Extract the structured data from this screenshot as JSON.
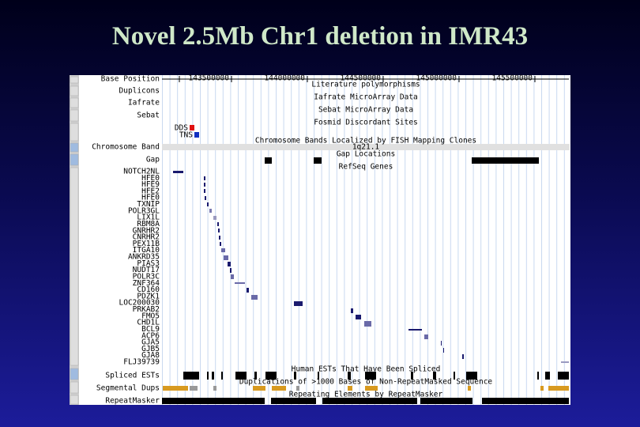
{
  "title": "Novel 2.5Mb Chr1 deletion in IMR43",
  "browser": {
    "base_position_label": "Base Position",
    "positions": [
      143500000,
      144000000,
      144500000,
      145000000,
      145500000
    ],
    "track_labels": {
      "duplicons": "Duplicons",
      "iafrate": "Iafrate",
      "sebat": "Sebat",
      "chromosome_band": "Chromosome Band",
      "gap": "Gap",
      "spliced_ests": "Spliced ESTs",
      "segmental_dups": "Segmental Dups",
      "repeatmasker": "RepeatMasker"
    },
    "track_titles": {
      "literature": "Literature polymorphisms",
      "iafrate": "Iafrate MicroArray Data",
      "sebat": "Sebat MicroArray Data",
      "fosmid": "Fosmid Discordant Sites",
      "bands": "Chromosome Bands Localized by FISH Mapping Clones",
      "gap": "Gap Locations",
      "refseq": "RefSeq Genes",
      "ests": "Human ESTs That Have Been Spliced",
      "dups": "Duplications of >1000 Bases of Non-RepeatMasked Sequence",
      "repeats": "Repeating Elements by RepeatMasker"
    },
    "band": "1q21.1",
    "legend": [
      "DDS",
      "TNS"
    ],
    "genes": [
      "NOTCH2NL",
      "HFE0",
      "HFE9",
      "HFE2",
      "HFE0",
      "TXNIP",
      "POLR3GL",
      "LIX1L",
      "RBM8A",
      "GNRHR2",
      "CNRHR2",
      "PEX11B",
      "ITGA10",
      "ANKRD35",
      "PIAS3",
      "NUDT17",
      "POLR3C",
      "ZNF364",
      "CD160",
      "PDZK1",
      "LOC200030",
      "PRKAB2",
      "FMO5",
      "CHD1L",
      "BCL9",
      "ACP6",
      "GJA5",
      "GJB5",
      "GJA8",
      "FLJ39739"
    ]
  }
}
